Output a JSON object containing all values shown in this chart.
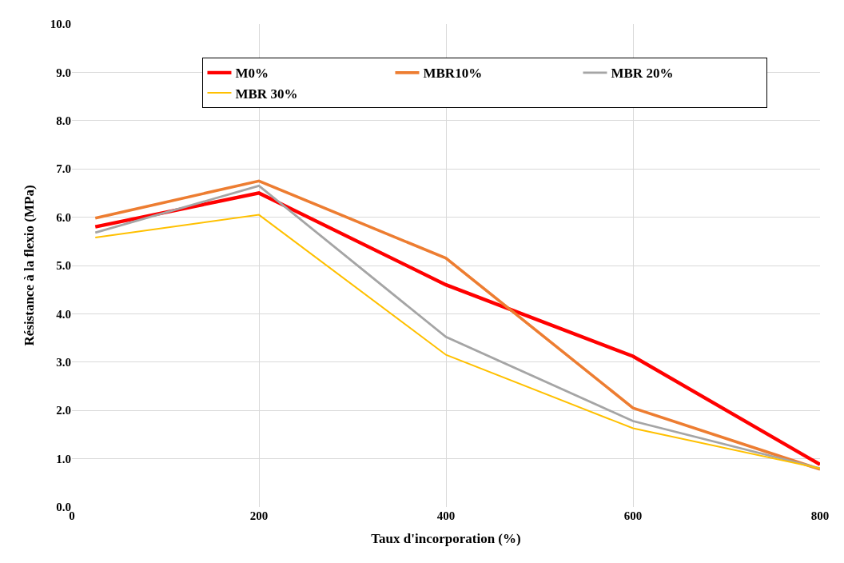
{
  "chart_data": {
    "type": "line",
    "xlabel": "Taux d'incorporation (%)",
    "ylabel": "Résistance à la flexio (MPa)",
    "x": [
      25,
      200,
      400,
      600,
      800
    ],
    "series": [
      {
        "name": "M0%",
        "color": "#ff0000",
        "values": [
          5.8,
          6.5,
          4.6,
          3.12,
          0.88
        ]
      },
      {
        "name": "MBR10%",
        "color": "#ed7d31",
        "values": [
          5.98,
          6.75,
          5.15,
          2.05,
          0.78
        ]
      },
      {
        "name": "MBR 20%",
        "color": "#a5a5a5",
        "values": [
          5.68,
          6.65,
          3.52,
          1.78,
          0.8
        ]
      },
      {
        "name": "MBR 30%",
        "color": "#ffc000",
        "values": [
          5.58,
          6.05,
          3.15,
          1.63,
          0.8
        ]
      }
    ],
    "xlim": [
      0,
      800
    ],
    "xticks": [
      0,
      200,
      400,
      600,
      800
    ],
    "ylim": [
      0,
      10
    ],
    "yticks": [
      {
        "value": 0,
        "label": "0.0"
      },
      {
        "value": 1,
        "label": "1.0"
      },
      {
        "value": 2,
        "label": "2.0"
      },
      {
        "value": 3,
        "label": "3.0"
      },
      {
        "value": 4,
        "label": "4.0"
      },
      {
        "value": 5,
        "label": "5.0"
      },
      {
        "value": 6,
        "label": "6.0"
      },
      {
        "value": 7,
        "label": "7.0"
      },
      {
        "value": 8,
        "label": "8.0"
      },
      {
        "value": 9,
        "label": "9.0"
      },
      {
        "value": 10,
        "label": "10.0"
      }
    ],
    "grid": true,
    "legend": "top right",
    "marker": "none",
    "line_style": "solid"
  }
}
